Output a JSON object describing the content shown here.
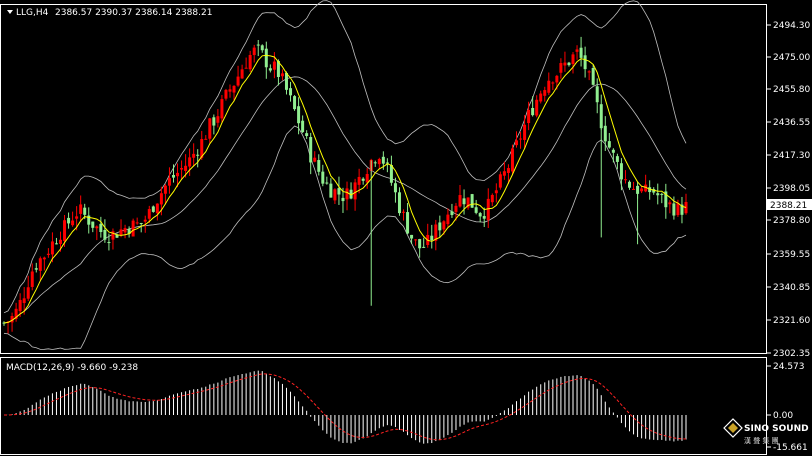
{
  "header": {
    "symbol_timeframe": "LLG,H4",
    "ohlc": "2386.57 2390.37 2386.14 2388.21"
  },
  "price_axis": {
    "ticks": [
      "2494.30",
      "2475.00",
      "2455.80",
      "2436.55",
      "2417.30",
      "2398.05",
      "2378.80",
      "2359.55",
      "2340.85",
      "2321.60",
      "2302.35"
    ],
    "current_price": "2388.21"
  },
  "macd": {
    "label": "MACD(12,26,9) -9.660 -9.238",
    "ticks": [
      "24.573",
      "0.00",
      "-15.661"
    ]
  },
  "logo": {
    "name": "SINO SOUND",
    "sub": "漢 聲 集 團"
  },
  "colors": {
    "background": "#000000",
    "bull_candle": "#ff0000",
    "bear_candle": "#90ee90",
    "ma_line": "#ffff00",
    "bands": "#bfbfbf",
    "macd_hist": "#ffffff",
    "macd_signal": "#ff0000"
  },
  "chart_data": {
    "type": "candlestick",
    "price_range": [
      2302.35,
      2500
    ],
    "macd_range": [
      -15.661,
      24.573
    ],
    "price_path": [
      2320,
      2322,
      2328,
      2338,
      2350,
      2356,
      2360,
      2366,
      2372,
      2376,
      2382,
      2386,
      2382,
      2378,
      2374,
      2372,
      2372,
      2374,
      2376,
      2377,
      2378,
      2382,
      2390,
      2396,
      2402,
      2406,
      2410,
      2414,
      2420,
      2426,
      2434,
      2440,
      2448,
      2456,
      2462,
      2470,
      2476,
      2480,
      2476,
      2470,
      2468,
      2460,
      2450,
      2440,
      2430,
      2418,
      2410,
      2402,
      2398,
      2396,
      2394,
      2398,
      2404,
      2410,
      2416,
      2420,
      2412,
      2400,
      2388,
      2378,
      2368,
      2364,
      2366,
      2372,
      2378,
      2384,
      2390,
      2394,
      2392,
      2388,
      2384,
      2388,
      2396,
      2404,
      2412,
      2422,
      2432,
      2442,
      2450,
      2458,
      2464,
      2466,
      2470,
      2474,
      2478,
      2472,
      2460,
      2446,
      2432,
      2420,
      2412,
      2404,
      2400,
      2398,
      2396,
      2398,
      2394,
      2390,
      2388,
      2386,
      2388
    ]
  }
}
